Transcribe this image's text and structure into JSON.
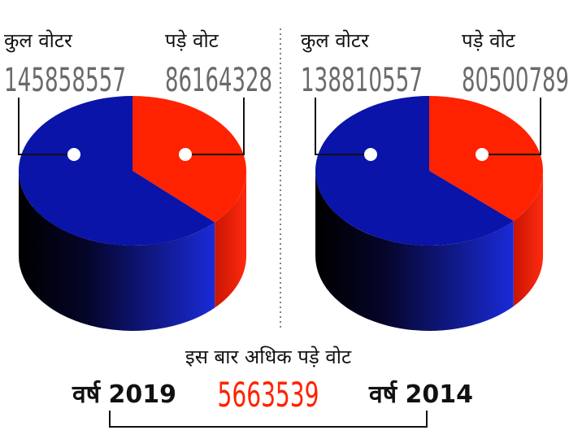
{
  "chart_data": [
    {
      "type": "pie",
      "title": "वर्ष 2019",
      "categories": [
        "कुल वोटर",
        "पड़े वोट"
      ],
      "values": [
        145858557,
        86164328
      ],
      "colors": [
        "#0a14a8",
        "#ff2200"
      ]
    },
    {
      "type": "pie",
      "title": "वर्ष 2014",
      "categories": [
        "कुल वोटर",
        "पड़े वोट"
      ],
      "values": [
        138810557,
        80500789
      ],
      "colors": [
        "#0a14a8",
        "#ff2200"
      ]
    }
  ],
  "annotation": {
    "text": "इस बार अधिक पड़े वोट",
    "value": 5663539
  }
}
